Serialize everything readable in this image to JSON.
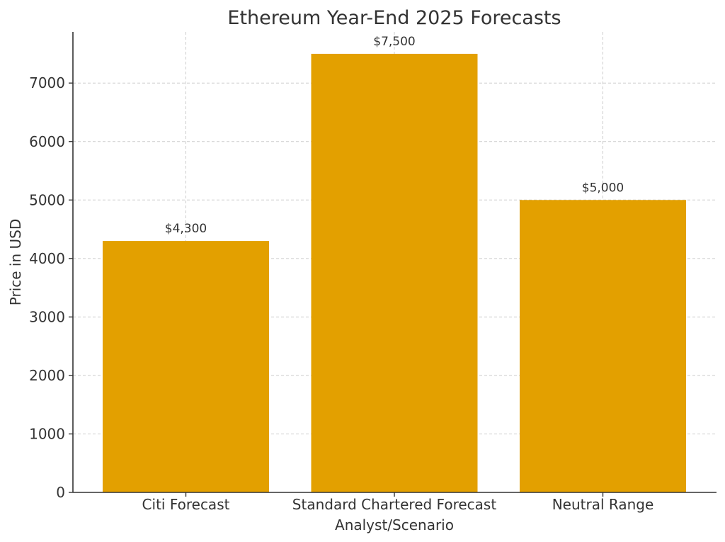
{
  "chart_data": {
    "type": "bar",
    "title": "Ethereum Year-End 2025 Forecasts",
    "xlabel": "Analyst/Scenario",
    "ylabel": "Price in USD",
    "categories": [
      "Citi Forecast",
      "Standard Chartered Forecast",
      "Neutral Range"
    ],
    "values": [
      4300,
      7500,
      5000
    ],
    "value_labels": [
      "$4,300",
      "$7,500",
      "$5,000"
    ],
    "ylim": [
      0,
      7875
    ],
    "yticks": [
      0,
      1000,
      2000,
      3000,
      4000,
      5000,
      6000,
      7000
    ],
    "grid": true,
    "bar_color": "#E3A000"
  }
}
